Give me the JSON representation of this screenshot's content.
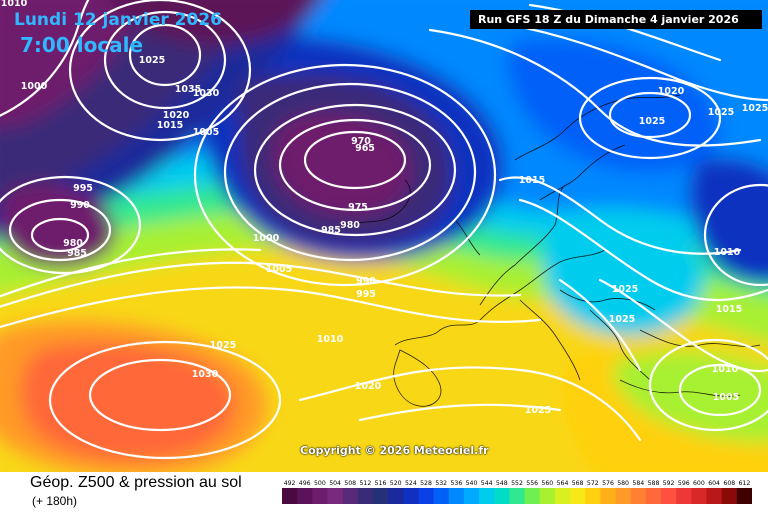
{
  "header": {
    "date": "Lundi 12 janvier 2026",
    "time": "7:00 locale",
    "run": "Run GFS 18 Z du Dimanche 4 janvier 2026"
  },
  "copyright": "Copyright © 2026 Meteociel.fr",
  "footer": {
    "field": "Géop. Z500 & pression au sol",
    "lead": "(+ 180h)"
  },
  "legend": {
    "values": [
      "492",
      "496",
      "500",
      "504",
      "508",
      "512",
      "516",
      "520",
      "524",
      "528",
      "532",
      "536",
      "540",
      "544",
      "548",
      "552",
      "556",
      "560",
      "564",
      "568",
      "572",
      "576",
      "580",
      "584",
      "588",
      "592",
      "596",
      "600",
      "604",
      "608",
      "612"
    ],
    "colors": [
      "#4a0a40",
      "#5c1258",
      "#6e1c6c",
      "#7a2a7e",
      "#5a2a7a",
      "#3a2a78",
      "#25307a",
      "#1a2a9a",
      "#1030c0",
      "#0a40e8",
      "#0060f8",
      "#0088ff",
      "#00aaff",
      "#00ccee",
      "#00dcc8",
      "#30e890",
      "#70f050",
      "#a8f030",
      "#d8f020",
      "#f8e818",
      "#ffd010",
      "#ffb018",
      "#ff9a28",
      "#ff8030",
      "#ff6838",
      "#ff5040",
      "#ee3838",
      "#d82828",
      "#b81818",
      "#8a0a0a",
      "#400000"
    ]
  },
  "map_labels": [
    {
      "text": "1010"
    },
    {
      "text": "1025"
    },
    {
      "text": "1000"
    },
    {
      "text": "1035"
    },
    {
      "text": "1030"
    },
    {
      "text": "1020"
    },
    {
      "text": "1015"
    },
    {
      "text": "1005"
    },
    {
      "text": "995"
    },
    {
      "text": "990"
    },
    {
      "text": "980"
    },
    {
      "text": "985"
    },
    {
      "text": "970"
    },
    {
      "text": "965"
    },
    {
      "text": "975"
    },
    {
      "text": "980"
    },
    {
      "text": "985"
    },
    {
      "text": "1000"
    },
    {
      "text": "1005"
    },
    {
      "text": "990"
    },
    {
      "text": "995"
    },
    {
      "text": "1010"
    },
    {
      "text": "1025"
    },
    {
      "text": "1030"
    },
    {
      "text": "1020"
    },
    {
      "text": "1025"
    },
    {
      "text": "1015"
    },
    {
      "text": "1020"
    },
    {
      "text": "1025"
    },
    {
      "text": "1025"
    },
    {
      "text": "1010"
    },
    {
      "text": "1025"
    },
    {
      "text": "1025"
    },
    {
      "text": "1015"
    },
    {
      "text": "1010"
    },
    {
      "text": "1005"
    },
    {
      "text": "1025"
    }
  ]
}
